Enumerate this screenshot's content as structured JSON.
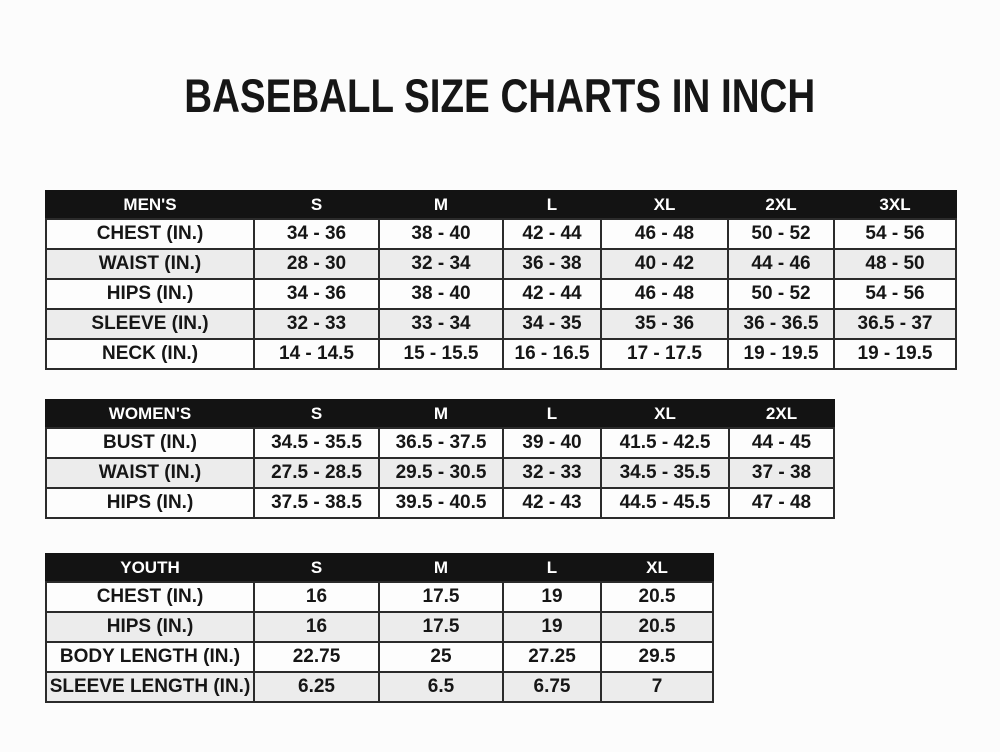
{
  "page": {
    "title": "BASEBALL SIZE CHARTS IN INCH"
  },
  "colors": {
    "header_background": "#131313",
    "header_text": "#ffffff",
    "row_shaded": "#ececec",
    "row_plain": "#fdfdfd",
    "border": "#2b2b2b",
    "text": "#161616"
  },
  "tables": [
    {
      "name": "mens",
      "header": [
        "MEN'S",
        "S",
        "M",
        "L",
        "XL",
        "2XL",
        "3XL"
      ],
      "rows": [
        [
          "CHEST (IN.)",
          "34 - 36",
          "38 - 40",
          "42 - 44",
          "46 - 48",
          "50 - 52",
          "54 - 56"
        ],
        [
          "WAIST (IN.)",
          "28 - 30",
          "32 - 34",
          "36 - 38",
          "40 - 42",
          "44 - 46",
          "48 - 50"
        ],
        [
          "HIPS (IN.)",
          "34 - 36",
          "38 - 40",
          "42 - 44",
          "46 - 48",
          "50 - 52",
          "54 - 56"
        ],
        [
          "SLEEVE (IN.)",
          "32 - 33",
          "33 - 34",
          "34 - 35",
          "35 - 36",
          "36 - 36.5",
          "36.5 - 37"
        ],
        [
          "NECK (IN.)",
          "14 - 14.5",
          "15 - 15.5",
          "16 - 16.5",
          "17 - 17.5",
          "19 - 19.5",
          "19 - 19.5"
        ]
      ]
    },
    {
      "name": "womens",
      "header": [
        "WOMEN'S",
        "S",
        "M",
        "L",
        "XL",
        "2XL"
      ],
      "rows": [
        [
          "BUST (IN.)",
          "34.5 - 35.5",
          "36.5 - 37.5",
          "39 - 40",
          "41.5 - 42.5",
          "44 - 45"
        ],
        [
          "WAIST (IN.)",
          "27.5 - 28.5",
          "29.5 - 30.5",
          "32 - 33",
          "34.5 - 35.5",
          "37 - 38"
        ],
        [
          "HIPS (IN.)",
          "37.5 - 38.5",
          "39.5 - 40.5",
          "42 - 43",
          "44.5 - 45.5",
          "47 - 48"
        ]
      ]
    },
    {
      "name": "youth",
      "header": [
        "YOUTH",
        "S",
        "M",
        "L",
        "XL"
      ],
      "rows": [
        [
          "CHEST (IN.)",
          "16",
          "17.5",
          "19",
          "20.5"
        ],
        [
          "HIPS (IN.)",
          "16",
          "17.5",
          "19",
          "20.5"
        ],
        [
          "BODY LENGTH (IN.)",
          "22.75",
          "25",
          "27.25",
          "29.5"
        ],
        [
          "SLEEVE LENGTH (IN.)",
          "6.25",
          "6.5",
          "6.75",
          "7"
        ]
      ]
    }
  ]
}
